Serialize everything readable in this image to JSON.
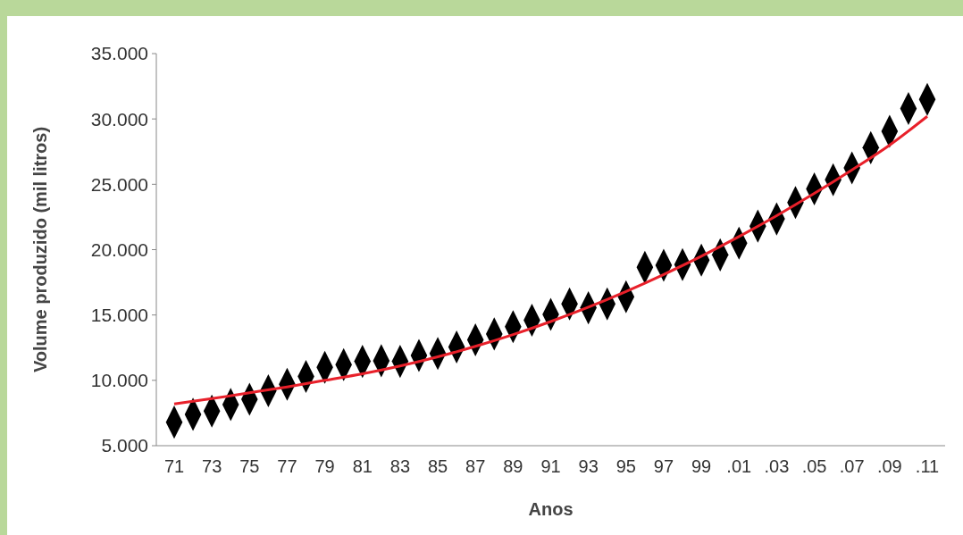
{
  "chart_data": {
    "type": "scatter",
    "xlabel": "Anos",
    "ylabel": "Volume produzido (mil litros)",
    "categories": [
      "71",
      null,
      "73",
      null,
      "75",
      null,
      "77",
      null,
      "79",
      null,
      "81",
      null,
      "83",
      null,
      "85",
      null,
      "87",
      null,
      "89",
      null,
      "91",
      null,
      "93",
      null,
      "95",
      null,
      "97",
      null,
      "99",
      null,
      ".01",
      null,
      ".03",
      null,
      ".05",
      null,
      ".07",
      null,
      ".09",
      null,
      ".11"
    ],
    "series": [
      {
        "color": "#000000",
        "marker": "diamond",
        "values": [
          6800,
          7400,
          7650,
          8150,
          8550,
          9200,
          9700,
          10300,
          11000,
          11200,
          11450,
          11500,
          11450,
          11900,
          12050,
          12550,
          13100,
          13550,
          14100,
          14600,
          15050,
          15850,
          15550,
          15850,
          16400,
          18650,
          18800,
          18850,
          19200,
          19600,
          20500,
          21800,
          22350,
          23600,
          24650,
          25350,
          26250,
          27800,
          29050,
          30800,
          31500
        ]
      },
      {
        "type": "line",
        "color": "#e8202a",
        "values": [
          8200,
          null,
          8600,
          null,
          9050,
          null,
          9500,
          null,
          10000,
          null,
          10500,
          null,
          11100,
          null,
          11800,
          null,
          12600,
          null,
          13500,
          null,
          14500,
          null,
          15600,
          null,
          16800,
          null,
          18100,
          null,
          19500,
          null,
          21000,
          null,
          22600,
          null,
          24300,
          null,
          26100,
          null,
          28000,
          null,
          30200
        ]
      }
    ],
    "ylim": [
      5000,
      35000
    ],
    "yticks": [
      {
        "value": 5000,
        "label": "5.000"
      },
      {
        "value": 10000,
        "label": "10.000"
      },
      {
        "value": 15000,
        "label": "15.000"
      },
      {
        "value": 20000,
        "label": "20.000"
      },
      {
        "value": 25000,
        "label": "25.000"
      },
      {
        "value": 30000,
        "label": "30.000"
      },
      {
        "value": 35000,
        "label": "35.000"
      }
    ],
    "grid": false
  }
}
